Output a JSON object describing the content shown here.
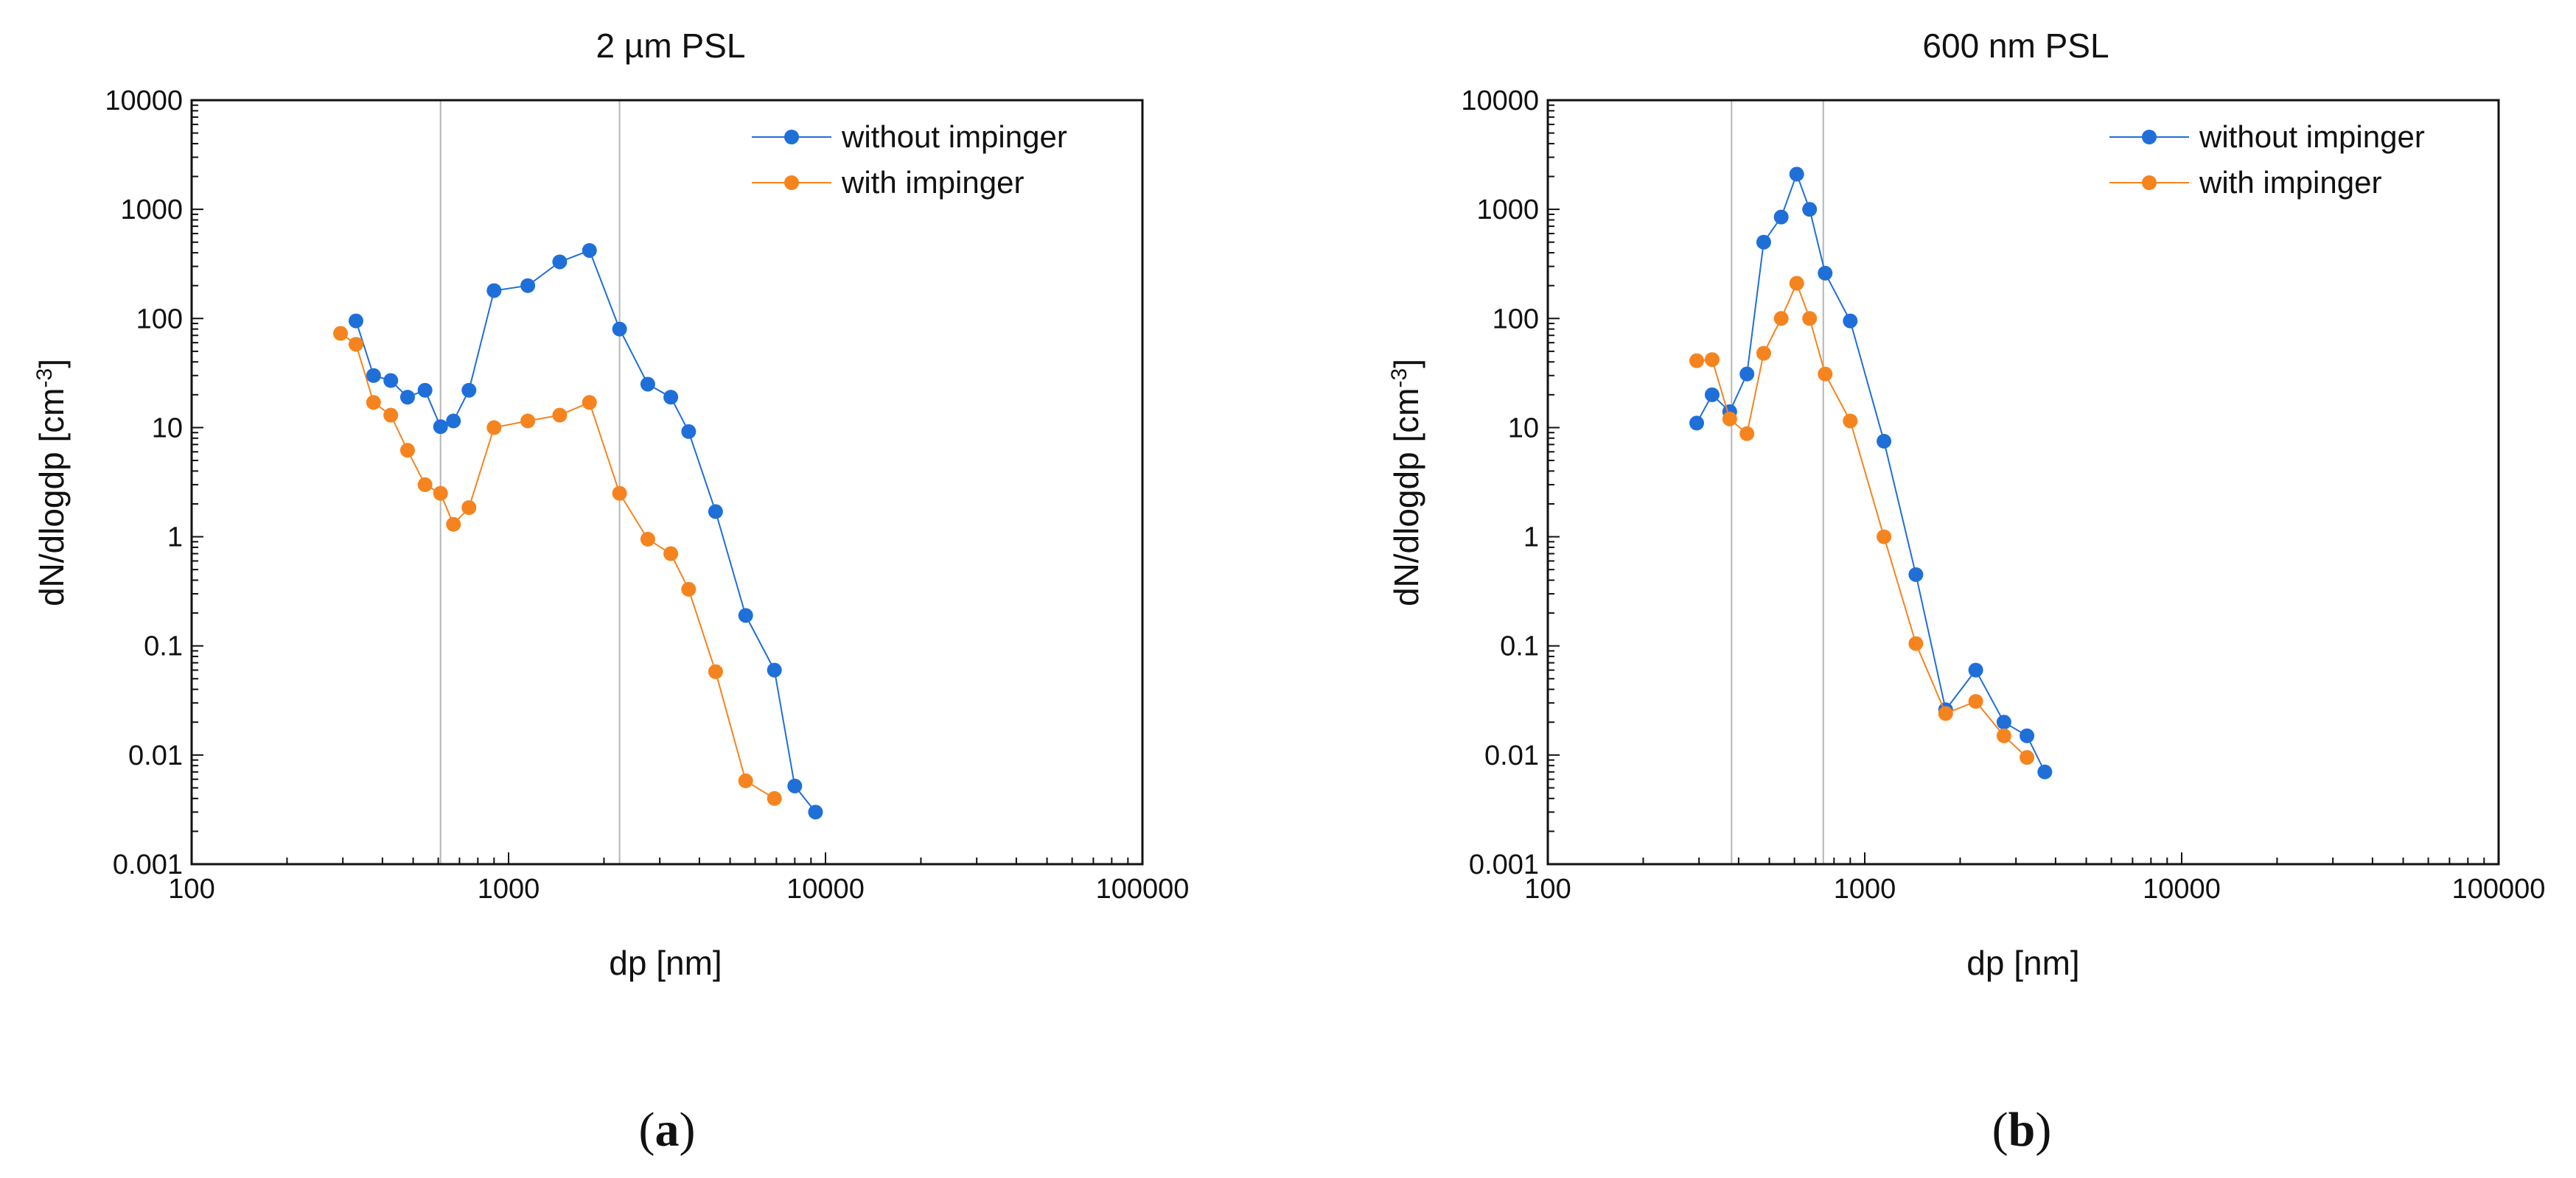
{
  "chart_data": [
    {
      "id": "a",
      "type": "scatter",
      "title": "2 µm PSL",
      "panel_label": "a",
      "xlabel": "dp [nm]",
      "ylabel": "dN/dlogdp [cm",
      "ylabel_sup": "-3",
      "ylabel_close": "]",
      "xscale": "log",
      "yscale": "log",
      "xlim": [
        100,
        100000
      ],
      "ylim": [
        0.001,
        10000
      ],
      "xticks": [
        {
          "value": 100,
          "label": "100"
        },
        {
          "value": 1000,
          "label": "1000"
        },
        {
          "value": 10000,
          "label": "10000"
        },
        {
          "value": 100000,
          "label": "100000"
        }
      ],
      "yticks": [
        {
          "value": 0.001,
          "label": "0.001"
        },
        {
          "value": 0.01,
          "label": "0.01"
        },
        {
          "value": 0.1,
          "label": "0.1"
        },
        {
          "value": 1,
          "label": "1"
        },
        {
          "value": 10,
          "label": "10"
        },
        {
          "value": 100,
          "label": "100"
        },
        {
          "value": 1000,
          "label": "1000"
        },
        {
          "value": 10000,
          "label": "10000"
        }
      ],
      "vlines": [
        610,
        2240
      ],
      "legend_position": "top-right",
      "series": [
        {
          "name": "without impinger",
          "color": "#1f6fd9",
          "points": [
            [
              330,
              95
            ],
            [
              375,
              30
            ],
            [
              425,
              27
            ],
            [
              480,
              19
            ],
            [
              545,
              22
            ],
            [
              610,
              10.2
            ],
            [
              670,
              11.5
            ],
            [
              750,
              22
            ],
            [
              900,
              180
            ],
            [
              1150,
              200
            ],
            [
              1450,
              330
            ],
            [
              1800,
              420
            ],
            [
              2240,
              80
            ],
            [
              2750,
              25
            ],
            [
              3250,
              19
            ],
            [
              3700,
              9.2
            ],
            [
              4500,
              1.7
            ],
            [
              5600,
              0.19
            ],
            [
              6900,
              0.06
            ],
            [
              8000,
              0.0052
            ],
            [
              9300,
              0.003
            ]
          ]
        },
        {
          "name": "with impinger",
          "color": "#f5841f",
          "points": [
            [
              295,
              73
            ],
            [
              330,
              58
            ],
            [
              375,
              17
            ],
            [
              425,
              13
            ],
            [
              480,
              6.2
            ],
            [
              545,
              3.0
            ],
            [
              610,
              2.5
            ],
            [
              670,
              1.3
            ],
            [
              750,
              1.85
            ],
            [
              900,
              10
            ],
            [
              1150,
              11.5
            ],
            [
              1450,
              13
            ],
            [
              1800,
              17
            ],
            [
              2240,
              2.5
            ],
            [
              2750,
              0.95
            ],
            [
              3250,
              0.7
            ],
            [
              3700,
              0.33
            ],
            [
              4500,
              0.058
            ],
            [
              5600,
              0.0058
            ],
            [
              6900,
              0.004
            ]
          ]
        }
      ]
    },
    {
      "id": "b",
      "type": "scatter",
      "title": "600 nm PSL",
      "panel_label": "b",
      "xlabel": "dp [nm]",
      "ylabel": "dN/dlogdp [cm",
      "ylabel_sup": "-3",
      "ylabel_close": "]",
      "xscale": "log",
      "yscale": "log",
      "xlim": [
        100,
        100000
      ],
      "ylim": [
        0.001,
        10000
      ],
      "xticks": [
        {
          "value": 100,
          "label": "100"
        },
        {
          "value": 1000,
          "label": "1000"
        },
        {
          "value": 10000,
          "label": "10000"
        },
        {
          "value": 100000,
          "label": "100000"
        }
      ],
      "yticks": [
        {
          "value": 0.001,
          "label": "0.001"
        },
        {
          "value": 0.01,
          "label": "0.01"
        },
        {
          "value": 0.1,
          "label": "0.1"
        },
        {
          "value": 1,
          "label": "1"
        },
        {
          "value": 10,
          "label": "10"
        },
        {
          "value": 100,
          "label": "100"
        },
        {
          "value": 1000,
          "label": "1000"
        },
        {
          "value": 10000,
          "label": "10000"
        }
      ],
      "vlines": [
        380,
        740
      ],
      "legend_position": "top-right",
      "series": [
        {
          "name": "without impinger",
          "color": "#1f6fd9",
          "points": [
            [
              295,
              11
            ],
            [
              330,
              20
            ],
            [
              375,
              14
            ],
            [
              425,
              31
            ],
            [
              480,
              500
            ],
            [
              545,
              850
            ],
            [
              610,
              2100
            ],
            [
              670,
              1000
            ],
            [
              750,
              260
            ],
            [
              900,
              95
            ],
            [
              1150,
              7.5
            ],
            [
              1450,
              0.45
            ],
            [
              1800,
              0.026
            ],
            [
              2240,
              0.06
            ],
            [
              2750,
              0.02
            ],
            [
              3250,
              0.015
            ],
            [
              3700,
              0.007
            ]
          ]
        },
        {
          "name": "with impinger",
          "color": "#f5841f",
          "points": [
            [
              295,
              41
            ],
            [
              330,
              42
            ],
            [
              375,
              12
            ],
            [
              425,
              8.8
            ],
            [
              480,
              48
            ],
            [
              545,
              100
            ],
            [
              610,
              210
            ],
            [
              670,
              100
            ],
            [
              750,
              31
            ],
            [
              900,
              11.5
            ],
            [
              1150,
              1.0
            ],
            [
              1450,
              0.105
            ],
            [
              1800,
              0.024
            ],
            [
              2240,
              0.031
            ],
            [
              2750,
              0.015
            ],
            [
              3250,
              0.0095
            ]
          ]
        }
      ]
    }
  ]
}
